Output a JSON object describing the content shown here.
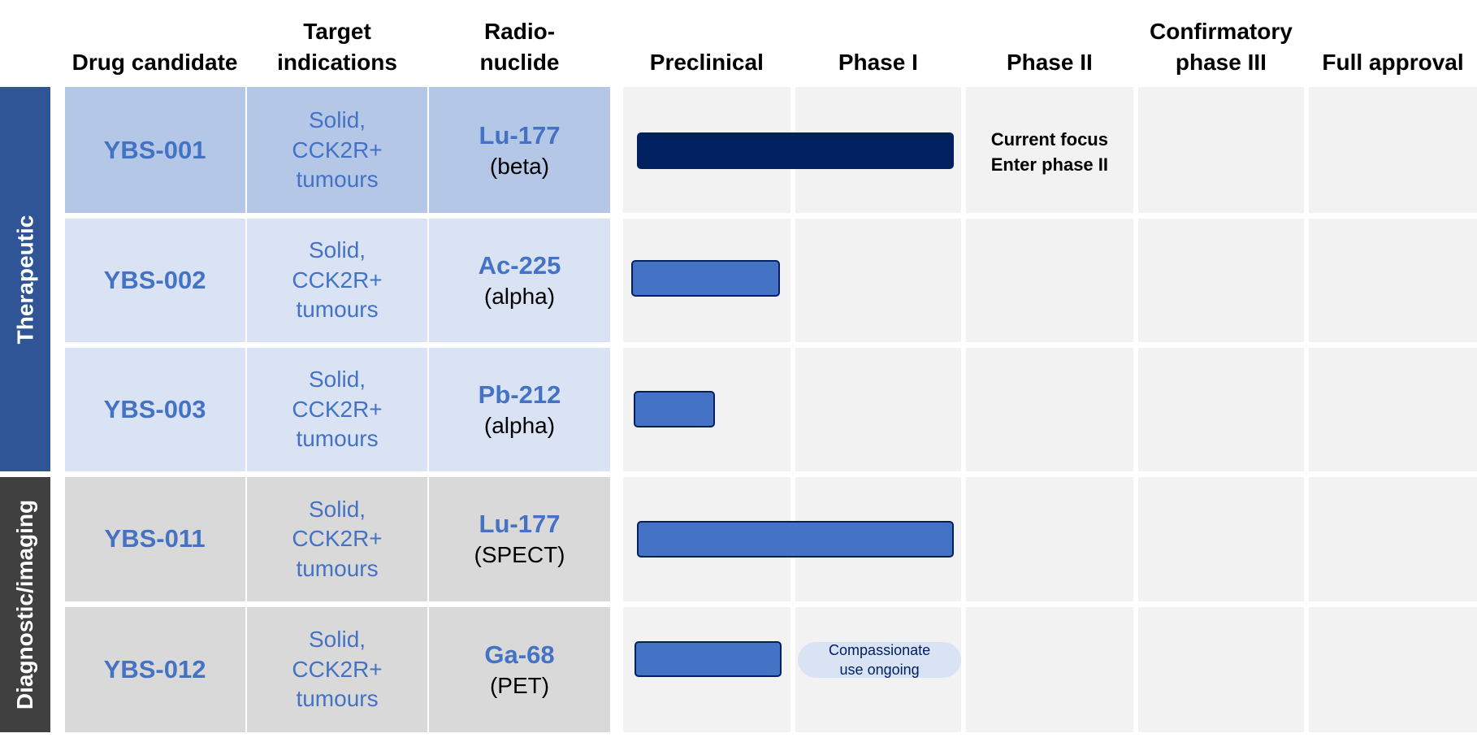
{
  "headers": [
    "Drug candidate",
    "Target indications",
    "Radio-nuclide",
    "Preclinical",
    "Phase I",
    "Phase II",
    "Confirmatory phase III",
    "Full approval"
  ],
  "groups": [
    {
      "label": "Therapeutic"
    },
    {
      "label": "Diagnostic/imaging"
    }
  ],
  "rows": [
    {
      "candidate": "YBS-001",
      "indication": "Solid, CCK2R+ tumours",
      "nuclide": "Lu-177",
      "nuclide_type": "(beta)",
      "note": [
        "Current focus",
        "Enter phase II"
      ]
    },
    {
      "candidate": "YBS-002",
      "indication": "Solid, CCK2R+ tumours",
      "nuclide": "Ac-225",
      "nuclide_type": "(alpha)"
    },
    {
      "candidate": "YBS-003",
      "indication": "Solid, CCK2R+ tumours",
      "nuclide": "Pb-212",
      "nuclide_type": "(alpha)"
    },
    {
      "candidate": "YBS-011",
      "indication": "Solid, CCK2R+ tumours",
      "nuclide": "Lu-177",
      "nuclide_type": "(SPECT)"
    },
    {
      "candidate": "YBS-012",
      "indication": "Solid, CCK2R+ tumours",
      "nuclide": "Ga-68",
      "nuclide_type": "(PET)",
      "note": [
        "Compassionate use ongoing"
      ]
    }
  ]
}
